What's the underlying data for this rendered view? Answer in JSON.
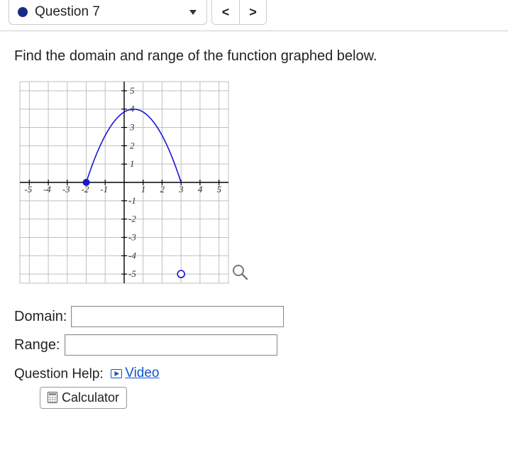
{
  "header": {
    "question_label": "Question 7",
    "status_color": "#1a2a8a",
    "prev_symbol": "<",
    "next_symbol": ">"
  },
  "prompt": "Find the domain and range of the function graphed below.",
  "graph": {
    "type": "line",
    "xlim": [
      -5.5,
      5.5
    ],
    "ylim": [
      -5.5,
      5.5
    ],
    "xtick_step": 1,
    "ytick_step": 1,
    "x_labels": [
      -5,
      -4,
      -3,
      -2,
      -1,
      1,
      2,
      3,
      4,
      5
    ],
    "y_labels": [
      -5,
      -4,
      -3,
      -2,
      -1,
      1,
      2,
      3,
      4,
      5
    ],
    "grid_color": "#bfbfbf",
    "axis_color": "#000000",
    "background_color": "#ffffff",
    "curve": {
      "color": "#1818d8",
      "width": 1.6,
      "start": {
        "x": -2,
        "y": 0,
        "closed": true
      },
      "vertex": {
        "x": 0.5,
        "y": 4
      },
      "end": {
        "x": 3,
        "y": -5,
        "closed": false
      },
      "closed_point_radius": 5,
      "open_point_radius": 5
    },
    "magnifier_icon": true
  },
  "inputs": {
    "domain_label": "Domain:",
    "domain_value": "",
    "range_label": "Range:",
    "range_value": ""
  },
  "help": {
    "label": "Question Help:",
    "video_label": "Video",
    "calculator_label": "Calculator"
  }
}
